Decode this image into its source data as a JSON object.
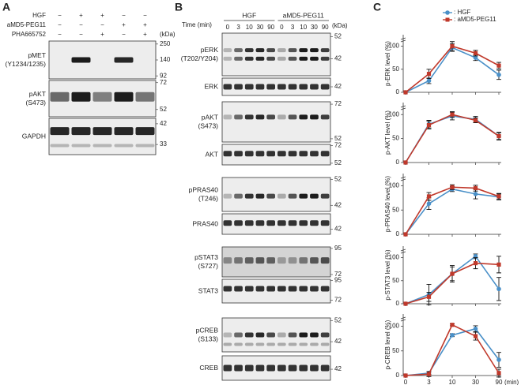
{
  "panel_a": {
    "letter": "A",
    "kda": "(kDa)",
    "conditions": [
      {
        "label": "HGF",
        "marks": [
          "−",
          "+",
          "+",
          "−",
          "−"
        ]
      },
      {
        "label": "aMD5-PEG11",
        "marks": [
          "−",
          "−",
          "−",
          "+",
          "+"
        ]
      },
      {
        "label": "PHA665752",
        "marks": [
          "−",
          "−",
          "+",
          "−",
          "+"
        ]
      }
    ],
    "blots": [
      {
        "label": [
          "pMET",
          "(Y1234/1235)"
        ],
        "kda": [
          250,
          140,
          92
        ]
      },
      {
        "label": [
          "pAKT",
          "(S473)"
        ],
        "kda": [
          72,
          52
        ]
      },
      {
        "label": [
          "GAPDH"
        ],
        "kda": [
          42,
          33
        ]
      }
    ]
  },
  "panel_b": {
    "letter": "B",
    "time_label": "Time (min)",
    "groups": [
      "HGF",
      "aMD5-PEG11"
    ],
    "times": [
      0,
      3,
      10,
      30,
      90,
      0,
      3,
      10,
      30,
      90
    ],
    "kda": "(kDa)",
    "blots": [
      {
        "label": [
          "pERK",
          "(T202/Y204)"
        ],
        "kda": [
          52,
          42
        ]
      },
      {
        "label": [
          "ERK"
        ],
        "kda": [
          42
        ]
      },
      {
        "label": [
          "pAKT",
          "(S473)"
        ],
        "kda": [
          72,
          52
        ]
      },
      {
        "label": [
          "AKT"
        ],
        "kda": [
          72,
          52
        ]
      },
      {
        "label": [
          "pPRAS40",
          "(T246)"
        ],
        "kda": [
          52,
          42
        ]
      },
      {
        "label": [
          "PRAS40"
        ],
        "kda": [
          42
        ]
      },
      {
        "label": [
          "pSTAT3",
          "(S727)"
        ],
        "kda": [
          95,
          72
        ]
      },
      {
        "label": [
          "STAT3"
        ],
        "kda": [
          95,
          72
        ]
      },
      {
        "label": [
          "pCREB",
          "(S133)"
        ],
        "kda": [
          52,
          42
        ]
      },
      {
        "label": [
          "CREB"
        ],
        "kda": [
          42
        ]
      }
    ]
  },
  "panel_c": {
    "letter": "C"
  },
  "chart_data": [
    {
      "type": "line",
      "ylabel": "p-ERK level (%)",
      "ylim": [
        0,
        125
      ],
      "yticks": [
        0,
        50,
        100
      ],
      "legend": "upper right",
      "series": [
        {
          "name": ": HGF",
          "color": "#4a90c8",
          "marker": "circle",
          "values": [
            0,
            25,
            97,
            75,
            38
          ],
          "errors": [
            0,
            6,
            8,
            6,
            10
          ]
        },
        {
          "name": ": aMD5-PEG11",
          "color": "#c0392b",
          "marker": "square",
          "values": [
            0,
            40,
            100,
            85,
            58
          ],
          "errors": [
            0,
            10,
            10,
            6,
            7
          ]
        }
      ]
    },
    {
      "type": "line",
      "ylabel": "p-AKT level (%)",
      "ylim": [
        0,
        125
      ],
      "yticks": [
        0,
        50,
        100
      ],
      "series": [
        {
          "color": "#4a90c8",
          "marker": "circle",
          "values": [
            0,
            80,
            97,
            90,
            55
          ],
          "errors": [
            0,
            8,
            8,
            6,
            8
          ]
        },
        {
          "color": "#c0392b",
          "marker": "square",
          "values": [
            0,
            78,
            100,
            88,
            55
          ],
          "errors": [
            0,
            8,
            6,
            5,
            7
          ]
        }
      ]
    },
    {
      "type": "line",
      "ylabel": "p-PRAS40 level (%)",
      "ylim": [
        0,
        125
      ],
      "yticks": [
        0,
        50,
        100
      ],
      "series": [
        {
          "color": "#4a90c8",
          "marker": "circle",
          "values": [
            0,
            63,
            93,
            83,
            77
          ],
          "errors": [
            0,
            12,
            5,
            10,
            6
          ]
        },
        {
          "color": "#c0392b",
          "marker": "square",
          "values": [
            0,
            78,
            97,
            95,
            78
          ],
          "errors": [
            0,
            8,
            5,
            6,
            6
          ]
        }
      ]
    },
    {
      "type": "line",
      "ylabel": "p-STAT3 level (%)",
      "ylim": [
        0,
        125
      ],
      "yticks": [
        0,
        50,
        100
      ],
      "series": [
        {
          "color": "#4a90c8",
          "marker": "circle",
          "values": [
            0,
            20,
            65,
            103,
            32
          ],
          "errors": [
            0,
            22,
            18,
            5,
            25
          ]
        },
        {
          "color": "#c0392b",
          "marker": "square",
          "values": [
            0,
            15,
            65,
            88,
            85
          ],
          "errors": [
            0,
            10,
            15,
            12,
            18
          ]
        }
      ]
    },
    {
      "type": "line",
      "ylabel": "p-CREB level (%)",
      "ylim": [
        0,
        125
      ],
      "yticks": [
        0,
        50,
        100
      ],
      "categories": [
        "0",
        "3",
        "10",
        "30",
        "90"
      ],
      "xlabel": "(min)",
      "series": [
        {
          "color": "#4a90c8",
          "marker": "circle",
          "values": [
            0,
            5,
            82,
            95,
            32
          ],
          "errors": [
            0,
            3,
            3,
            6,
            15
          ]
        },
        {
          "color": "#c0392b",
          "marker": "square",
          "values": [
            0,
            3,
            103,
            80,
            5
          ],
          "errors": [
            0,
            5,
            2,
            8,
            8
          ]
        }
      ]
    }
  ]
}
